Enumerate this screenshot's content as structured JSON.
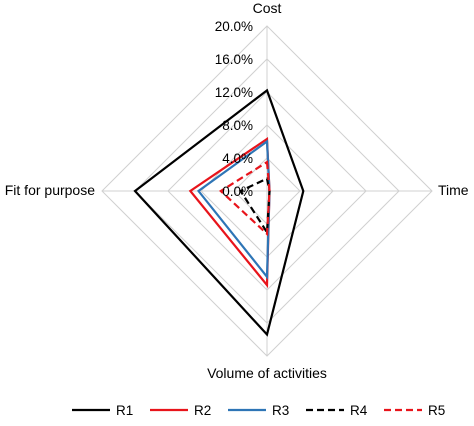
{
  "chart_data": {
    "type": "radar",
    "axes": [
      "Cost",
      "Time",
      "Volume of activities",
      "Fit for purpose"
    ],
    "r_ticks": [
      "0.0%",
      "4.0%",
      "8.0%",
      "12.0%",
      "16.0%",
      "20.0%"
    ],
    "r_range": [
      0,
      20
    ],
    "grid": true,
    "legend_position": "bottom",
    "series": [
      {
        "name": "R1",
        "values": [
          12.2,
          4.4,
          17.4,
          16.0
        ],
        "color": "#000000",
        "dash": "solid"
      },
      {
        "name": "R2",
        "values": [
          6.3,
          0.3,
          11.4,
          9.3
        ],
        "color": "#e8141b",
        "dash": "solid"
      },
      {
        "name": "R3",
        "values": [
          6.0,
          0.3,
          10.4,
          8.3
        ],
        "color": "#2e75b6",
        "dash": "solid"
      },
      {
        "name": "R4",
        "values": [
          1.5,
          0.3,
          5.0,
          3.2
        ],
        "color": "#000000",
        "dash": "dashed"
      },
      {
        "name": "R5",
        "values": [
          3.5,
          0.3,
          5.2,
          5.6
        ],
        "color": "#e8141b",
        "dash": "dashed"
      }
    ]
  }
}
